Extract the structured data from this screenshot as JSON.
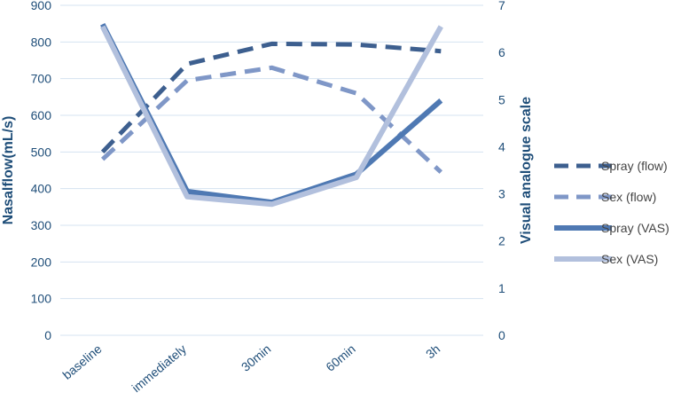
{
  "chart_data": {
    "type": "line",
    "categories": [
      "baseline",
      "immediately",
      "30min",
      "60min",
      "3h"
    ],
    "ylabel": "Nasalflow(mL/s)",
    "ylabel2": "Visual analogue scale",
    "ylim": [
      0,
      900
    ],
    "y_ticks": [
      0,
      100,
      200,
      300,
      400,
      500,
      600,
      700,
      800,
      900
    ],
    "ylim2": [
      0,
      7
    ],
    "y2_ticks": [
      0,
      1,
      2,
      3,
      4,
      5,
      6,
      7
    ],
    "grid": true,
    "legend_position": "right",
    "series": [
      {
        "name": "Spray (flow)",
        "axis": "left",
        "style": "dashed",
        "color": "#3d5f8f",
        "values": [
          500,
          740,
          795,
          793,
          775
        ]
      },
      {
        "name": "Sex (flow)",
        "axis": "left",
        "style": "dashed",
        "color": "#7f97c7",
        "values": [
          480,
          695,
          730,
          660,
          445
        ]
      },
      {
        "name": "Spray (VAS)",
        "axis": "right",
        "style": "solid",
        "color": "#4f79b3",
        "values": [
          6.6,
          3.05,
          2.82,
          3.42,
          4.98
        ]
      },
      {
        "name": "Sex (VAS)",
        "axis": "right",
        "style": "solid",
        "color": "#b2c0dd",
        "values": [
          6.55,
          2.94,
          2.78,
          3.35,
          6.55
        ]
      }
    ]
  }
}
